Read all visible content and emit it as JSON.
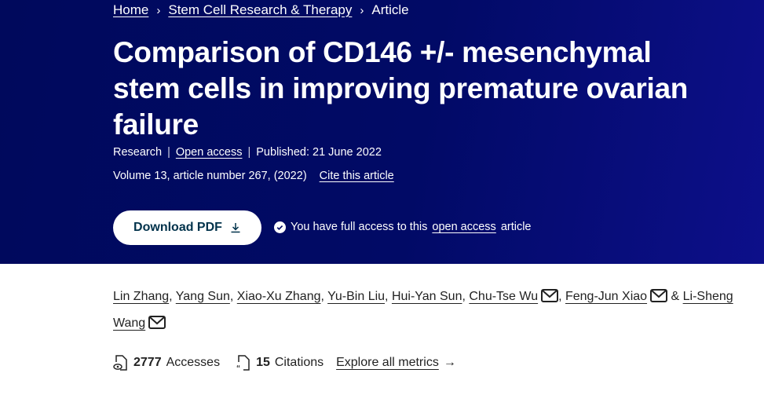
{
  "breadcrumb": [
    {
      "label": "Home"
    },
    {
      "label": "Stem Cell Research & Therapy"
    },
    {
      "label": "Article"
    }
  ],
  "title": "Comparison of CD146 +/- mesenchymal stem cells in improving premature ovarian failure",
  "meta": {
    "type": "Research",
    "open_access": "Open access",
    "published": "Published: 21 June 2022",
    "volume": "Volume 13, article number 267, (2022)",
    "cite": "Cite this article"
  },
  "download": {
    "label": "Download PDF",
    "icon": "download-icon"
  },
  "access": {
    "prefix": "You have full access to this",
    "link": "open access",
    "suffix": "article"
  },
  "authors": [
    {
      "name": "Lin Zhang",
      "mail": false
    },
    {
      "name": "Yang Sun",
      "mail": false
    },
    {
      "name": "Xiao-Xu Zhang",
      "mail": false
    },
    {
      "name": "Yu-Bin Liu",
      "mail": false
    },
    {
      "name": "Hui-Yan Sun",
      "mail": false
    },
    {
      "name": "Chu-Tse Wu",
      "mail": true
    },
    {
      "name": "Feng-Jun Xiao",
      "mail": true
    },
    {
      "name": "Li-Sheng Wang",
      "mail": true
    }
  ],
  "metrics": {
    "accesses_count": "2777",
    "accesses_label": "Accesses",
    "citations_count": "15",
    "citations_label": "Citations",
    "explore": "Explore all metrics"
  },
  "colors": {
    "hero": "#010a66",
    "button_text": "#01324b"
  }
}
